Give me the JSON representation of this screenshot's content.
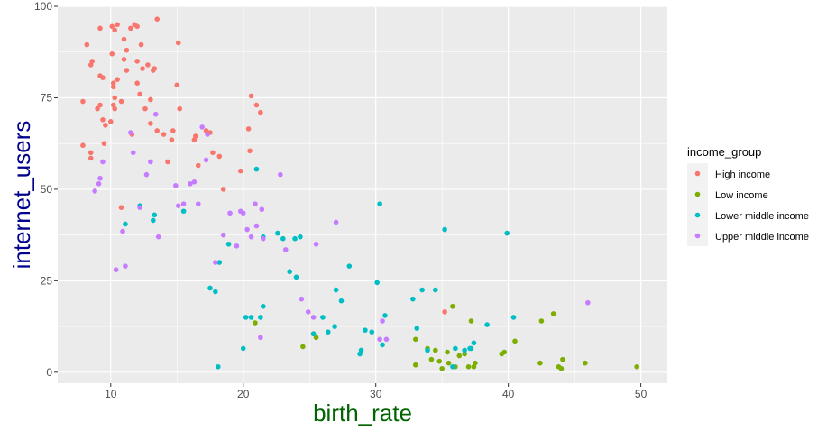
{
  "chart_data": {
    "type": "scatter",
    "xlabel": "birth_rate",
    "ylabel": "internet_users",
    "xlim": [
      6,
      52
    ],
    "ylim": [
      -3,
      100
    ],
    "x_ticks": [
      10,
      20,
      30,
      40,
      50
    ],
    "y_ticks": [
      0,
      25,
      50,
      75,
      100
    ],
    "grid": true,
    "legend": {
      "title": "income_group",
      "position": "right"
    },
    "series": [
      {
        "name": "High income",
        "color": "#F8766D",
        "points": [
          [
            7.9,
            74
          ],
          [
            7.9,
            62
          ],
          [
            8.2,
            89.5
          ],
          [
            8.5,
            60
          ],
          [
            8.5,
            58.5
          ],
          [
            8.5,
            84
          ],
          [
            8.6,
            85
          ],
          [
            9,
            72
          ],
          [
            9.2,
            94
          ],
          [
            9.2,
            73
          ],
          [
            9.2,
            81
          ],
          [
            9.4,
            69
          ],
          [
            9.4,
            80.5
          ],
          [
            9.5,
            62.5
          ],
          [
            9.6,
            67.5
          ],
          [
            10,
            68.5
          ],
          [
            10.1,
            94.5
          ],
          [
            10.1,
            87
          ],
          [
            10.2,
            73
          ],
          [
            10.2,
            79
          ],
          [
            10.2,
            78
          ],
          [
            10.3,
            75
          ],
          [
            10.3,
            72
          ],
          [
            10.3,
            93.5
          ],
          [
            10.5,
            95
          ],
          [
            10.5,
            80
          ],
          [
            10.8,
            45
          ],
          [
            10.8,
            74
          ],
          [
            11,
            85.5
          ],
          [
            11,
            91
          ],
          [
            11.2,
            88
          ],
          [
            11.2,
            82.5
          ],
          [
            11.5,
            94
          ],
          [
            11.6,
            65
          ],
          [
            11.8,
            95
          ],
          [
            12,
            94.5
          ],
          [
            12,
            85
          ],
          [
            12,
            79
          ],
          [
            12.2,
            76
          ],
          [
            12.4,
            83
          ],
          [
            12.3,
            89.5
          ],
          [
            12.6,
            72
          ],
          [
            12.8,
            84
          ],
          [
            13,
            74.5
          ],
          [
            13,
            68
          ],
          [
            13.2,
            82.5
          ],
          [
            13.3,
            83
          ],
          [
            13.5,
            96.5
          ],
          [
            13.5,
            66
          ],
          [
            14,
            65
          ],
          [
            14.3,
            57.5
          ],
          [
            14.6,
            63.5
          ],
          [
            14.7,
            66
          ],
          [
            15,
            78.5
          ],
          [
            15.1,
            90
          ],
          [
            15.2,
            72
          ],
          [
            16.3,
            63.5
          ],
          [
            16.4,
            64.5
          ],
          [
            16.6,
            56.5
          ],
          [
            17.2,
            66
          ],
          [
            17.5,
            65.5
          ],
          [
            17.7,
            60
          ],
          [
            18.2,
            59
          ],
          [
            18.5,
            50
          ],
          [
            19.8,
            55
          ],
          [
            20.4,
            66.5
          ],
          [
            20.5,
            60.5
          ],
          [
            20.6,
            75.5
          ],
          [
            21,
            73
          ],
          [
            21.3,
            71
          ],
          [
            35.2,
            16.5
          ]
        ]
      },
      {
        "name": "Low income",
        "color": "#7CAE00",
        "points": [
          [
            20.9,
            13.5
          ],
          [
            24.5,
            7
          ],
          [
            25.3,
            10.5
          ],
          [
            25.5,
            9.5
          ],
          [
            33,
            9
          ],
          [
            33,
            2
          ],
          [
            33.9,
            6.5
          ],
          [
            34.2,
            3.5
          ],
          [
            34.5,
            6
          ],
          [
            34.8,
            3
          ],
          [
            35,
            1
          ],
          [
            35.4,
            5.5
          ],
          [
            35.5,
            2.5
          ],
          [
            35.8,
            18
          ],
          [
            36,
            1.5
          ],
          [
            36.3,
            4.5
          ],
          [
            36.7,
            5
          ],
          [
            37,
            1.5
          ],
          [
            37.2,
            14
          ],
          [
            37.4,
            1.5
          ],
          [
            37.5,
            2.5
          ],
          [
            39.5,
            5
          ],
          [
            39.7,
            5.5
          ],
          [
            40.5,
            8.5
          ],
          [
            42.4,
            2.5
          ],
          [
            42.5,
            14
          ],
          [
            43.4,
            16
          ],
          [
            43.8,
            1.5
          ],
          [
            44,
            1
          ],
          [
            44.1,
            3.5
          ],
          [
            45.8,
            2.5
          ],
          [
            49.7,
            1.5
          ]
        ]
      },
      {
        "name": "Lower middle income",
        "color": "#00BFC4",
        "points": [
          [
            11.1,
            40.5
          ],
          [
            12.2,
            45.5
          ],
          [
            13.2,
            41.5
          ],
          [
            13.3,
            43
          ],
          [
            15.5,
            44
          ],
          [
            17.5,
            23
          ],
          [
            17.9,
            22
          ],
          [
            18.1,
            1.5
          ],
          [
            18.2,
            30
          ],
          [
            18.9,
            35
          ],
          [
            20,
            6.5
          ],
          [
            20.2,
            15
          ],
          [
            20.6,
            15
          ],
          [
            21,
            55.5
          ],
          [
            21.3,
            15
          ],
          [
            21.5,
            18
          ],
          [
            21.5,
            37
          ],
          [
            22.6,
            38
          ],
          [
            23,
            36.5
          ],
          [
            23.5,
            27.5
          ],
          [
            23.9,
            36.5
          ],
          [
            24,
            26
          ],
          [
            24.3,
            37
          ],
          [
            25.3,
            10.5
          ],
          [
            26,
            15
          ],
          [
            26.4,
            11
          ],
          [
            26.9,
            12.5
          ],
          [
            27,
            22.5
          ],
          [
            27.4,
            19.5
          ],
          [
            28,
            29
          ],
          [
            28.8,
            5
          ],
          [
            28.9,
            6
          ],
          [
            29.2,
            11.5
          ],
          [
            29.7,
            11
          ],
          [
            30.1,
            24.5
          ],
          [
            30.3,
            46
          ],
          [
            30.5,
            7.5
          ],
          [
            30.7,
            15.5
          ],
          [
            32.8,
            20
          ],
          [
            33.1,
            12
          ],
          [
            33.5,
            22.5
          ],
          [
            33.9,
            6
          ],
          [
            34.5,
            22.5
          ],
          [
            35.2,
            39
          ],
          [
            35.8,
            1.5
          ],
          [
            36,
            6.5
          ],
          [
            36.7,
            6
          ],
          [
            37.1,
            6.5
          ],
          [
            37.2,
            6.5
          ],
          [
            37.4,
            8
          ],
          [
            38.4,
            13
          ],
          [
            39.9,
            38
          ],
          [
            40.4,
            15
          ]
        ]
      },
      {
        "name": "Upper middle income",
        "color": "#C77CFF",
        "points": [
          [
            8.8,
            49.5
          ],
          [
            9.1,
            51.5
          ],
          [
            9.2,
            53
          ],
          [
            9.4,
            57.5
          ],
          [
            10.4,
            28
          ],
          [
            10.9,
            38.5
          ],
          [
            11.1,
            29
          ],
          [
            11.5,
            65.5
          ],
          [
            11.7,
            60
          ],
          [
            12.2,
            45
          ],
          [
            12.7,
            54
          ],
          [
            13,
            57.5
          ],
          [
            13.4,
            70.5
          ],
          [
            13.6,
            37
          ],
          [
            14.9,
            51
          ],
          [
            15.1,
            45.5
          ],
          [
            15.5,
            46
          ],
          [
            16,
            51.5
          ],
          [
            16.3,
            52
          ],
          [
            16.6,
            46
          ],
          [
            16.9,
            67
          ],
          [
            17.2,
            58
          ],
          [
            17.3,
            65
          ],
          [
            17.9,
            30
          ],
          [
            18.5,
            37.5
          ],
          [
            19,
            43.5
          ],
          [
            19.5,
            34.5
          ],
          [
            19.8,
            44
          ],
          [
            20,
            43.5
          ],
          [
            20.3,
            39
          ],
          [
            20.6,
            37
          ],
          [
            20.9,
            46
          ],
          [
            21,
            40
          ],
          [
            21.3,
            9.5
          ],
          [
            21.4,
            44.5
          ],
          [
            21.5,
            36.5
          ],
          [
            22.8,
            54
          ],
          [
            23.2,
            33.5
          ],
          [
            24.4,
            20
          ],
          [
            24.9,
            16.5
          ],
          [
            25.3,
            15
          ],
          [
            25.5,
            35
          ],
          [
            27,
            41
          ],
          [
            30.3,
            9
          ],
          [
            30.5,
            14
          ],
          [
            30.8,
            9
          ],
          [
            46,
            19
          ]
        ]
      }
    ]
  }
}
